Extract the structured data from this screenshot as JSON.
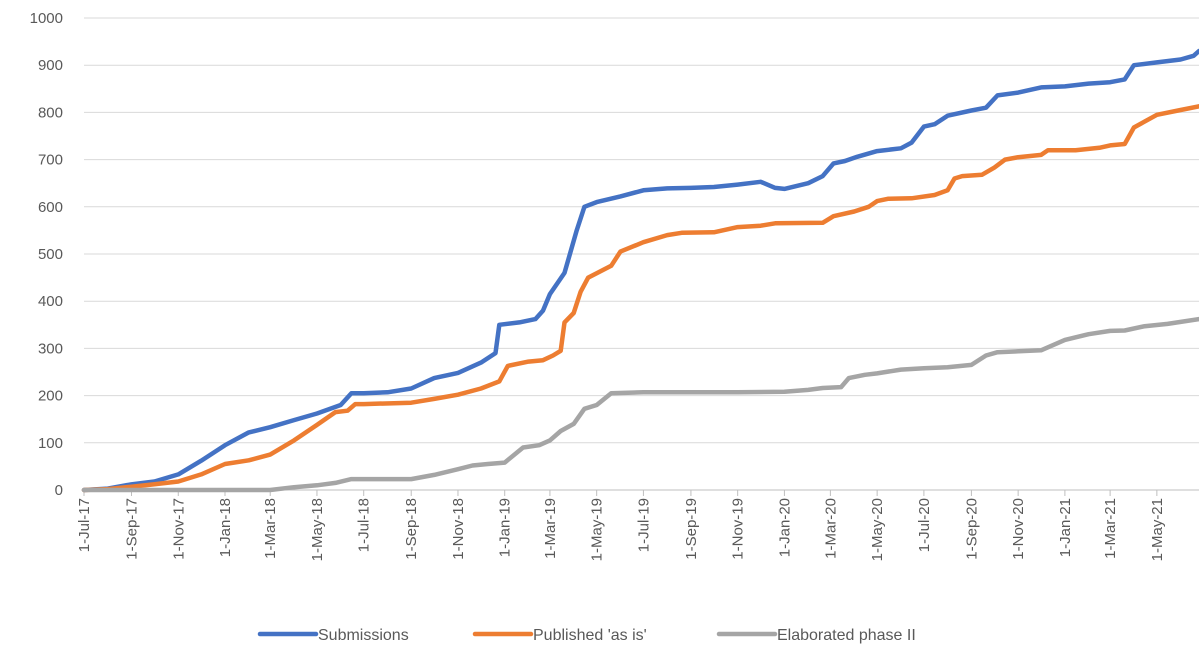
{
  "chart_data": {
    "type": "line",
    "title": "",
    "xlabel": "",
    "ylabel": "",
    "ylim": [
      0,
      1000
    ],
    "xlim": [
      "2017-07-01",
      "2021-06-25"
    ],
    "grid": "horizontal",
    "legend_position": "bottom",
    "y_ticks": [
      "0",
      "100",
      "200",
      "300",
      "400",
      "500",
      "600",
      "700",
      "800",
      "900",
      "1000"
    ],
    "x_ticks": [
      {
        "label": "1-Jul-17",
        "date": "2017-07-01"
      },
      {
        "label": "1-Sep-17",
        "date": "2017-09-01"
      },
      {
        "label": "1-Nov-17",
        "date": "2017-11-01"
      },
      {
        "label": "1-Jan-18",
        "date": "2018-01-01"
      },
      {
        "label": "1-Mar-18",
        "date": "2018-03-01"
      },
      {
        "label": "1-May-18",
        "date": "2018-05-01"
      },
      {
        "label": "1-Jul-18",
        "date": "2018-07-01"
      },
      {
        "label": "1-Sep-18",
        "date": "2018-09-01"
      },
      {
        "label": "1-Nov-18",
        "date": "2018-11-01"
      },
      {
        "label": "1-Jan-19",
        "date": "2019-01-01"
      },
      {
        "label": "1-Mar-19",
        "date": "2019-03-01"
      },
      {
        "label": "1-May-19",
        "date": "2019-05-01"
      },
      {
        "label": "1-Jul-19",
        "date": "2019-07-01"
      },
      {
        "label": "1-Sep-19",
        "date": "2019-09-01"
      },
      {
        "label": "1-Nov-19",
        "date": "2019-11-01"
      },
      {
        "label": "1-Jan-20",
        "date": "2020-01-01"
      },
      {
        "label": "1-Mar-20",
        "date": "2020-03-01"
      },
      {
        "label": "1-May-20",
        "date": "2020-05-01"
      },
      {
        "label": "1-Jul-20",
        "date": "2020-07-01"
      },
      {
        "label": "1-Sep-20",
        "date": "2020-09-01"
      },
      {
        "label": "1-Nov-20",
        "date": "2020-11-01"
      },
      {
        "label": "1-Jan-21",
        "date": "2021-01-01"
      },
      {
        "label": "1-Mar-21",
        "date": "2021-03-01"
      },
      {
        "label": "1-May-21",
        "date": "2021-05-01"
      }
    ],
    "series": [
      {
        "name": "Submissions",
        "color": "#4472C4",
        "points": [
          [
            "2017-07-01",
            0
          ],
          [
            "2017-08-01",
            3
          ],
          [
            "2017-09-01",
            12
          ],
          [
            "2017-10-01",
            18
          ],
          [
            "2017-11-01",
            33
          ],
          [
            "2017-12-01",
            62
          ],
          [
            "2018-01-01",
            95
          ],
          [
            "2018-02-01",
            122
          ],
          [
            "2018-03-01",
            133
          ],
          [
            "2018-04-01",
            148
          ],
          [
            "2018-05-01",
            162
          ],
          [
            "2018-06-01",
            180
          ],
          [
            "2018-06-15",
            205
          ],
          [
            "2018-07-01",
            205
          ],
          [
            "2018-08-01",
            207
          ],
          [
            "2018-09-01",
            215
          ],
          [
            "2018-10-01",
            237
          ],
          [
            "2018-11-01",
            248
          ],
          [
            "2018-12-01",
            270
          ],
          [
            "2018-12-20",
            290
          ],
          [
            "2018-12-25",
            350
          ],
          [
            "2019-01-20",
            355
          ],
          [
            "2019-02-10",
            362
          ],
          [
            "2019-02-20",
            380
          ],
          [
            "2019-03-01",
            415
          ],
          [
            "2019-03-20",
            460
          ],
          [
            "2019-04-05",
            550
          ],
          [
            "2019-04-15",
            600
          ],
          [
            "2019-05-01",
            610
          ],
          [
            "2019-06-01",
            622
          ],
          [
            "2019-07-01",
            635
          ],
          [
            "2019-08-01",
            639
          ],
          [
            "2019-09-01",
            640
          ],
          [
            "2019-10-01",
            642
          ],
          [
            "2019-11-01",
            647
          ],
          [
            "2019-12-01",
            653
          ],
          [
            "2019-12-20",
            640
          ],
          [
            "2020-01-01",
            638
          ],
          [
            "2020-02-01",
            650
          ],
          [
            "2020-02-20",
            665
          ],
          [
            "2020-03-05",
            692
          ],
          [
            "2020-03-20",
            697
          ],
          [
            "2020-04-05",
            706
          ],
          [
            "2020-05-01",
            718
          ],
          [
            "2020-06-01",
            724
          ],
          [
            "2020-06-15",
            736
          ],
          [
            "2020-07-01",
            770
          ],
          [
            "2020-07-15",
            775
          ],
          [
            "2020-08-01",
            793
          ],
          [
            "2020-09-01",
            804
          ],
          [
            "2020-09-20",
            810
          ],
          [
            "2020-10-05",
            836
          ],
          [
            "2020-11-01",
            842
          ],
          [
            "2020-12-01",
            853
          ],
          [
            "2021-01-01",
            855
          ],
          [
            "2021-02-01",
            861
          ],
          [
            "2021-03-01",
            864
          ],
          [
            "2021-03-20",
            870
          ],
          [
            "2021-04-01",
            900
          ],
          [
            "2021-05-01",
            906
          ],
          [
            "2021-06-01",
            912
          ],
          [
            "2021-06-18",
            920
          ],
          [
            "2021-06-25",
            930
          ]
        ]
      },
      {
        "name": "Published 'as is'",
        "color": "#ED7D31",
        "points": [
          [
            "2017-07-01",
            0
          ],
          [
            "2017-08-01",
            2
          ],
          [
            "2017-09-01",
            7
          ],
          [
            "2017-10-01",
            12
          ],
          [
            "2017-11-01",
            18
          ],
          [
            "2017-12-01",
            33
          ],
          [
            "2018-01-01",
            55
          ],
          [
            "2018-02-01",
            63
          ],
          [
            "2018-03-01",
            75
          ],
          [
            "2018-04-01",
            105
          ],
          [
            "2018-05-01",
            138
          ],
          [
            "2018-05-25",
            165
          ],
          [
            "2018-06-10",
            168
          ],
          [
            "2018-06-20",
            182
          ],
          [
            "2018-07-01",
            182
          ],
          [
            "2018-09-01",
            185
          ],
          [
            "2018-10-01",
            193
          ],
          [
            "2018-11-01",
            202
          ],
          [
            "2018-12-01",
            215
          ],
          [
            "2018-12-25",
            230
          ],
          [
            "2019-01-05",
            263
          ],
          [
            "2019-02-01",
            272
          ],
          [
            "2019-02-20",
            275
          ],
          [
            "2019-03-05",
            285
          ],
          [
            "2019-03-15",
            295
          ],
          [
            "2019-03-20",
            355
          ],
          [
            "2019-04-01",
            375
          ],
          [
            "2019-04-10",
            420
          ],
          [
            "2019-04-20",
            450
          ],
          [
            "2019-05-20",
            475
          ],
          [
            "2019-06-01",
            505
          ],
          [
            "2019-07-01",
            525
          ],
          [
            "2019-08-01",
            540
          ],
          [
            "2019-08-20",
            545
          ],
          [
            "2019-10-01",
            546
          ],
          [
            "2019-11-01",
            557
          ],
          [
            "2019-12-01",
            560
          ],
          [
            "2019-12-20",
            565
          ],
          [
            "2020-02-20",
            566
          ],
          [
            "2020-03-05",
            580
          ],
          [
            "2020-04-01",
            590
          ],
          [
            "2020-04-20",
            600
          ],
          [
            "2020-05-01",
            612
          ],
          [
            "2020-05-15",
            617
          ],
          [
            "2020-06-15",
            618
          ],
          [
            "2020-07-15",
            625
          ],
          [
            "2020-08-01",
            635
          ],
          [
            "2020-08-10",
            660
          ],
          [
            "2020-08-20",
            665
          ],
          [
            "2020-09-15",
            668
          ],
          [
            "2020-10-01",
            683
          ],
          [
            "2020-10-15",
            700
          ],
          [
            "2020-11-01",
            705
          ],
          [
            "2020-12-01",
            710
          ],
          [
            "2020-12-10",
            720
          ],
          [
            "2021-01-15",
            720
          ],
          [
            "2021-02-15",
            725
          ],
          [
            "2021-03-01",
            730
          ],
          [
            "2021-03-20",
            733
          ],
          [
            "2021-04-01",
            768
          ],
          [
            "2021-05-01",
            795
          ],
          [
            "2021-06-01",
            805
          ],
          [
            "2021-06-25",
            813
          ]
        ]
      },
      {
        "name": "Elaborated phase II",
        "color": "#A5A5A5",
        "points": [
          [
            "2017-07-01",
            0
          ],
          [
            "2018-03-01",
            0
          ],
          [
            "2018-04-01",
            6
          ],
          [
            "2018-05-01",
            10
          ],
          [
            "2018-05-25",
            15
          ],
          [
            "2018-06-15",
            23
          ],
          [
            "2018-09-01",
            23
          ],
          [
            "2018-10-01",
            32
          ],
          [
            "2018-11-01",
            44
          ],
          [
            "2018-11-20",
            52
          ],
          [
            "2018-12-10",
            55
          ],
          [
            "2019-01-01",
            58
          ],
          [
            "2019-01-25",
            90
          ],
          [
            "2019-02-15",
            95
          ],
          [
            "2019-03-01",
            105
          ],
          [
            "2019-03-15",
            125
          ],
          [
            "2019-04-01",
            140
          ],
          [
            "2019-04-15",
            172
          ],
          [
            "2019-05-01",
            180
          ],
          [
            "2019-05-20",
            205
          ],
          [
            "2019-07-01",
            207
          ],
          [
            "2019-11-01",
            207
          ],
          [
            "2020-01-01",
            208
          ],
          [
            "2020-02-01",
            212
          ],
          [
            "2020-02-20",
            216
          ],
          [
            "2020-03-15",
            218
          ],
          [
            "2020-03-25",
            237
          ],
          [
            "2020-04-15",
            244
          ],
          [
            "2020-05-01",
            247
          ],
          [
            "2020-06-01",
            255
          ],
          [
            "2020-07-01",
            258
          ],
          [
            "2020-08-01",
            260
          ],
          [
            "2020-09-01",
            265
          ],
          [
            "2020-09-20",
            285
          ],
          [
            "2020-10-05",
            292
          ],
          [
            "2020-12-01",
            296
          ],
          [
            "2021-01-01",
            318
          ],
          [
            "2021-02-01",
            330
          ],
          [
            "2021-03-01",
            337
          ],
          [
            "2021-03-20",
            338
          ],
          [
            "2021-04-15",
            347
          ],
          [
            "2021-05-15",
            352
          ],
          [
            "2021-06-25",
            362
          ]
        ]
      }
    ]
  }
}
